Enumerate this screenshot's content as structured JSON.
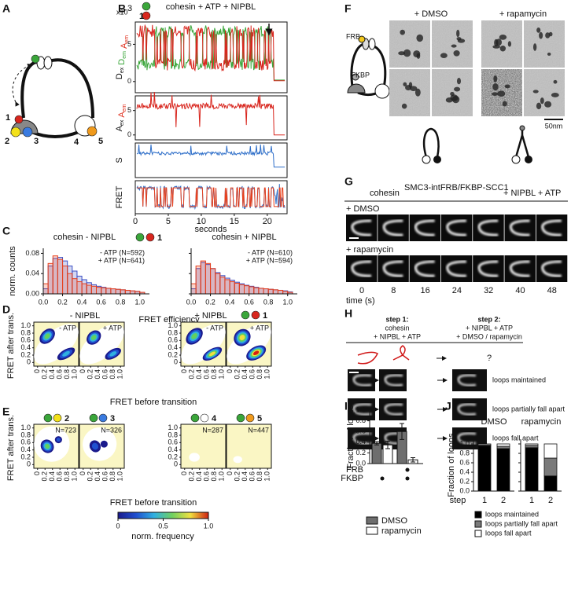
{
  "panels": [
    "A",
    "B",
    "C",
    "D",
    "E",
    "F",
    "G",
    "H",
    "I",
    "J"
  ],
  "a": {
    "sites": [
      "1",
      "2",
      "3",
      "4",
      "5"
    ]
  },
  "b": {
    "title": "cohesin + ATP + NIPBL",
    "scale_base": "x10",
    "scale_exp": "3",
    "dye": "1",
    "rows": [
      {
        "label": [
          {
            "text": "D",
            "sub": "ex"
          },
          {
            "text": "D",
            "sub": "em"
          },
          {
            "text": "A",
            "sub": "em"
          }
        ],
        "colors": [
          "#111111",
          "#3aa63a",
          "#e0301e"
        ],
        "ylim": [
          -1.5,
          8
        ],
        "yticks": [
          0,
          5
        ]
      },
      {
        "label": [
          {
            "text": "A",
            "sub": "ex"
          },
          {
            "text": "A",
            "sub": "em"
          }
        ],
        "colors": [
          "#111111",
          "#e0301e"
        ],
        "ylim": [
          -1,
          8
        ],
        "yticks": [
          0,
          5
        ]
      },
      {
        "label": [
          {
            "text": "S"
          }
        ],
        "colors": [
          "#111111"
        ]
      },
      {
        "label": [
          {
            "text": "FRET"
          }
        ],
        "colors": [
          "#111111"
        ]
      }
    ],
    "xlim": [
      0,
      23
    ],
    "xticks": [
      0,
      5,
      10,
      15,
      20
    ],
    "xlabel": "seconds"
  },
  "c": {
    "titles": [
      "cohesin - NIPBL",
      "cohesin + NIPBL"
    ],
    "dye": "1",
    "ylabel": "norm. counts",
    "xlabel": "FRET efficiency",
    "ylim": [
      0,
      0.09
    ],
    "yticks": [
      {
        "value": 0,
        "label": "0.00"
      },
      {
        "value": 0.04,
        "label": "0.04"
      },
      {
        "value": 0.08,
        "label": "0.08"
      }
    ],
    "xlim": [
      0,
      1.1
    ],
    "xticks": [
      {
        "value": 0,
        "label": "0.0"
      },
      0.2,
      0.4,
      0.6,
      0.8,
      {
        "value": 1,
        "label": "1.0"
      }
    ],
    "bins": [
      0,
      0.05,
      0.1,
      0.15,
      0.2,
      0.25,
      0.3,
      0.35,
      0.4,
      0.45,
      0.5,
      0.55,
      0.6,
      0.65,
      0.7,
      0.75,
      0.8,
      0.85,
      0.9,
      0.95,
      1.0,
      1.05
    ],
    "panels": [
      {
        "series": [
          {
            "name": "- ATP (N=592)",
            "color": "#3b4fc4",
            "values": [
              0.01,
              0.055,
              0.07,
              0.072,
              0.065,
              0.055,
              0.045,
              0.035,
              0.028,
              0.022,
              0.018,
              0.015,
              0.013,
              0.011,
              0.01,
              0.009,
              0.008,
              0.007,
              0.006,
              0.005,
              0.003
            ]
          },
          {
            "name": "+ ATP (N=641)",
            "color": "#e8401c",
            "values": [
              0.02,
              0.06,
              0.075,
              0.068,
              0.055,
              0.04,
              0.03,
              0.024,
              0.02,
              0.017,
              0.015,
              0.013,
              0.012,
              0.011,
              0.01,
              0.009,
              0.008,
              0.007,
              0.006,
              0.005,
              0.003
            ]
          }
        ]
      },
      {
        "series": [
          {
            "name": "- ATP (N=610)",
            "color": "#3b4fc4",
            "values": [
              0.01,
              0.05,
              0.062,
              0.058,
              0.05,
              0.042,
              0.036,
              0.031,
              0.027,
              0.023,
              0.02,
              0.017,
              0.015,
              0.013,
              0.011,
              0.01,
              0.009,
              0.008,
              0.007,
              0.006,
              0.004
            ]
          },
          {
            "name": "+ ATP (N=594)",
            "color": "#e8401c",
            "values": [
              0.02,
              0.055,
              0.065,
              0.06,
              0.05,
              0.04,
              0.033,
              0.028,
              0.024,
              0.021,
              0.018,
              0.016,
              0.014,
              0.012,
              0.011,
              0.01,
              0.009,
              0.008,
              0.007,
              0.005,
              0.003
            ]
          }
        ]
      }
    ]
  },
  "d": {
    "groups": [
      "- NIPBL",
      "+ NIPBL"
    ],
    "dye": "1",
    "subtitles": [
      "- ATP",
      "+ ATP",
      "- ATP",
      "+ ATP"
    ],
    "lim": [
      -0.1,
      1.1
    ],
    "ticks": [
      0,
      0.2,
      0.4,
      0.6,
      0.8,
      {
        "value": 1,
        "label": "1.0"
      }
    ],
    "ylabel": "FRET after trans.",
    "xlabel": "FRET before transition"
  },
  "e": {
    "dyes": [
      "2",
      "3",
      "4",
      "5"
    ],
    "n_labels": [
      "N=723",
      "N=326",
      "N=287",
      "N=447"
    ],
    "lim": [
      -0.1,
      1.1
    ],
    "ticks": [
      0,
      0.2,
      0.4,
      0.6,
      0.8,
      {
        "value": 1,
        "label": "1.0"
      }
    ],
    "ylabel": "FRET after trans.",
    "xlabel": "FRET before transition",
    "colorbar": {
      "lim": [
        0,
        1
      ],
      "ticks": [
        0,
        0.5,
        {
          "value": 1,
          "label": "1.0"
        }
      ],
      "label": "norm. frequency"
    }
  },
  "f": {
    "fusion": [
      "FRB",
      "FKBP"
    ],
    "conditions": [
      "+ DMSO",
      "+ rapamycin"
    ],
    "scale": "50nm"
  },
  "g": {
    "title": "cohesin",
    "superscript": "SMC3-intFRB/FKBP-SCC1",
    "title_suffix": "+ NIPBL + ATP",
    "conditions": [
      "+ DMSO",
      "+ rapamycin"
    ],
    "times": [
      0,
      8,
      16,
      24,
      32,
      40,
      48
    ],
    "time_label": "time (s)"
  },
  "h": {
    "step1": {
      "label": "step 1:",
      "lines": [
        "cohesin",
        "+ NIPBL + ATP"
      ]
    },
    "step2": {
      "label": "step 2:",
      "lines": [
        "+ NIPBL + ATP",
        "+ DMSO / rapamycin"
      ]
    },
    "question": "?",
    "outcomes": [
      "loops maintained",
      "loops partially fall apart",
      "loops fall apart"
    ]
  },
  "i": {
    "type": "bar",
    "ylabel": "Fraction of loops",
    "ylim": [
      0,
      1
    ],
    "yticks": [
      {
        "value": 0,
        "label": "0.0"
      },
      0.2,
      0.4,
      0.6,
      0.8,
      {
        "value": 1,
        "label": "1.0"
      }
    ],
    "row_labels": [
      "FRB",
      "FKBP"
    ],
    "constructs": [
      [
        false,
        true
      ],
      [
        true,
        true
      ]
    ],
    "series": [
      {
        "name": "DMSO",
        "color": "#6e6e6e",
        "values": [
          0.38,
          0.6
        ],
        "errors": [
          0.03,
          0.15
        ]
      },
      {
        "name": "rapamycin",
        "color": "#ffffff",
        "values": [
          0.35,
          0.07
        ],
        "errors": [
          0.07,
          0.04
        ]
      }
    ]
  },
  "j": {
    "type": "stacked_bar",
    "panels": [
      "DMSO",
      "rapamycin"
    ],
    "ylabel": "Fraction of loops",
    "xlabel": "step",
    "categories": [
      "1",
      "2"
    ],
    "ylim": [
      0,
      1.1
    ],
    "yticks": [
      {
        "value": 0,
        "label": "0.0"
      },
      0.2,
      0.4,
      0.6,
      0.8,
      {
        "value": 1,
        "label": "1.0"
      }
    ],
    "series": [
      {
        "name": "loops maintained",
        "color": "#000000",
        "values": [
          [
            0.96,
            0.9
          ],
          [
            0.92,
            0.32
          ]
        ]
      },
      {
        "name": "loops partially fall apart",
        "color": "#7a7a7a",
        "values": [
          [
            0.02,
            0.05
          ],
          [
            0.05,
            0.38
          ]
        ]
      },
      {
        "name": "loops fall apart",
        "color": "#ffffff",
        "values": [
          [
            0.02,
            0.05
          ],
          [
            0.03,
            0.3
          ]
        ]
      }
    ]
  }
}
